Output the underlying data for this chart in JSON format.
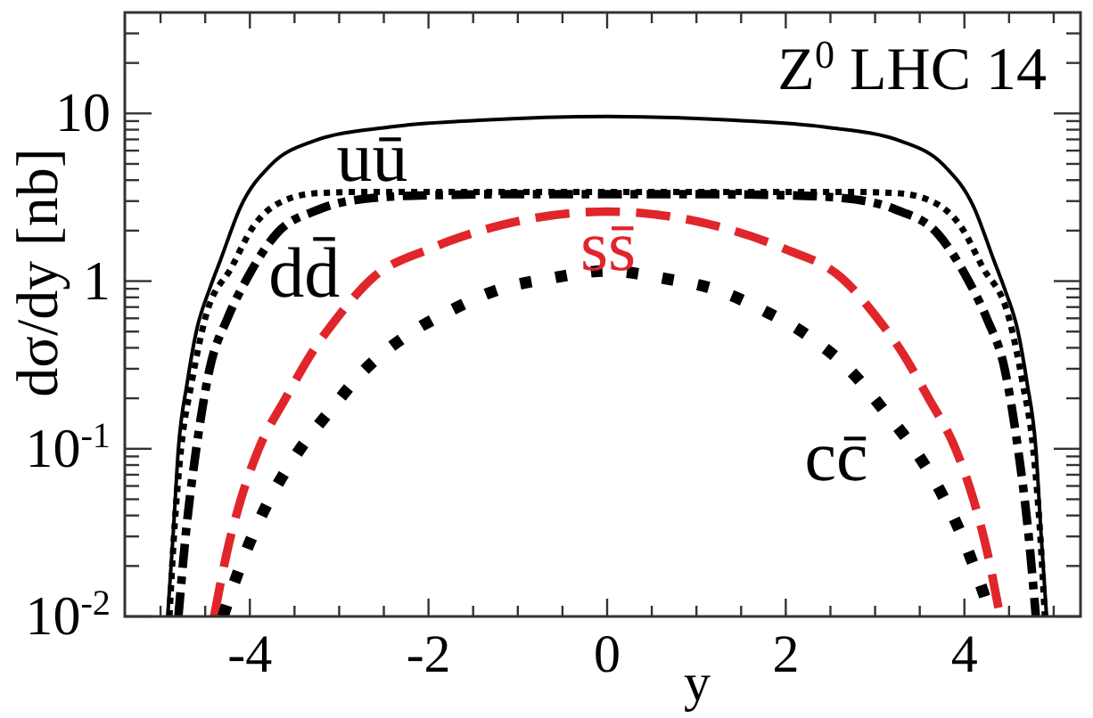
{
  "chart_data": {
    "type": "line",
    "xlabel": "y",
    "ylabel": "dσ/dy [nb]",
    "annotations": [
      "Z$^{0}$ LHC 14"
    ],
    "xlim": [
      -5.4,
      5.3
    ],
    "ylim": [
      0.01,
      40
    ],
    "log": "y",
    "xticks": [
      {
        "value": -5,
        "label": null
      },
      {
        "value": -4.5,
        "label": null
      },
      -4,
      {
        "value": -3.5,
        "label": null
      },
      {
        "value": -3,
        "label": null
      },
      {
        "value": -2.5,
        "label": null
      },
      -2,
      {
        "value": -1.5,
        "label": null
      },
      {
        "value": -1,
        "label": null
      },
      {
        "value": -0.5,
        "label": null
      },
      0,
      {
        "value": 0.5,
        "label": null
      },
      {
        "value": 1,
        "label": null
      },
      {
        "value": 1.5,
        "label": null
      },
      2,
      {
        "value": 2.5,
        "label": null
      },
      {
        "value": 3,
        "label": null
      },
      {
        "value": 3.5,
        "label": null
      },
      4,
      {
        "value": 4.5,
        "label": null
      },
      {
        "value": 5,
        "label": null
      }
    ],
    "yticks": [
      {
        "value": 0.01,
        "label": "10$^{-2}$"
      },
      {
        "value": 0.02,
        "label": null
      },
      {
        "value": 0.03,
        "label": null
      },
      {
        "value": 0.04,
        "label": null
      },
      {
        "value": 0.05,
        "label": null
      },
      {
        "value": 0.06,
        "label": null
      },
      {
        "value": 0.07,
        "label": null
      },
      {
        "value": 0.08,
        "label": null
      },
      {
        "value": 0.09,
        "label": null
      },
      {
        "value": 0.1,
        "label": "10$^{-1}$"
      },
      {
        "value": 0.2,
        "label": null
      },
      {
        "value": 0.3,
        "label": null
      },
      {
        "value": 0.4,
        "label": null
      },
      {
        "value": 0.5,
        "label": null
      },
      {
        "value": 0.6,
        "label": null
      },
      {
        "value": 0.7,
        "label": null
      },
      {
        "value": 0.8,
        "label": null
      },
      {
        "value": 0.9,
        "label": null
      },
      1,
      {
        "value": 2,
        "label": null
      },
      {
        "value": 3,
        "label": null
      },
      {
        "value": 4,
        "label": null
      },
      {
        "value": 5,
        "label": null
      },
      {
        "value": 6,
        "label": null
      },
      {
        "value": 7,
        "label": null
      },
      {
        "value": 8,
        "label": null
      },
      {
        "value": 9,
        "label": null
      },
      10,
      {
        "value": 20,
        "label": null
      },
      {
        "value": 30,
        "label": null
      }
    ],
    "series": [
      {
        "color": "#000000",
        "line_style": "solid",
        "x": [
          -4.92,
          -4.86,
          -4.8,
          -4.7,
          -4.6,
          -4.45,
          -4.33,
          -4.1,
          -3.77,
          -3.3,
          -2.43,
          -1.43,
          0,
          1.43,
          2.43,
          3.3,
          3.77,
          4.1,
          4.33,
          4.45,
          4.6,
          4.7,
          4.8,
          4.86,
          4.92
        ],
        "values": [
          0.01,
          0.03,
          0.1,
          0.25,
          0.5,
          0.9,
          1.33,
          2.8,
          4.9,
          6.8,
          8.3,
          9.1,
          9.6,
          9.1,
          8.3,
          6.8,
          4.9,
          2.8,
          1.33,
          0.9,
          0.5,
          0.25,
          0.1,
          0.03,
          0.01
        ]
      },
      {
        "name": "uū",
        "color": "#000000",
        "line_style": "dotted",
        "x": [
          -4.9,
          -4.85,
          -4.77,
          -4.65,
          -4.5,
          -4.2,
          -3.97,
          -3.63,
          -3.23,
          -2.77,
          -2,
          -1,
          0,
          1,
          2,
          2.77,
          3.23,
          3.63,
          3.97,
          4.2,
          4.5,
          4.65,
          4.77,
          4.85,
          4.9
        ],
        "values": [
          0.01,
          0.03,
          0.1,
          0.25,
          0.6,
          1.22,
          2.08,
          3.0,
          3.35,
          3.4,
          3.4,
          3.4,
          3.4,
          3.4,
          3.4,
          3.4,
          3.35,
          3.0,
          2.08,
          1.22,
          0.6,
          0.25,
          0.1,
          0.03,
          0.01
        ]
      },
      {
        "name": "dd̄",
        "color": "#000000",
        "line_style": "dashdot",
        "x": [
          -4.8,
          -4.72,
          -4.6,
          -4.45,
          -4.25,
          -4.03,
          -3.7,
          -3.23,
          -2.63,
          -2,
          -1,
          0,
          1,
          2,
          2.63,
          3.23,
          3.7,
          4.03,
          4.25,
          4.45,
          4.6,
          4.72,
          4.8
        ],
        "values": [
          0.01,
          0.03,
          0.1,
          0.3,
          0.6,
          1.04,
          1.92,
          2.67,
          3.13,
          3.25,
          3.3,
          3.3,
          3.3,
          3.25,
          3.13,
          2.67,
          1.92,
          1.04,
          0.6,
          0.3,
          0.1,
          0.03,
          0.01
        ]
      },
      {
        "name": "ss̄",
        "color": "#e0252b",
        "line_style": "dashed",
        "x": [
          -4.4,
          -4.25,
          -4.1,
          -3.9,
          -3.6,
          -3.23,
          -3.07,
          -2.63,
          -1.97,
          -1.3,
          -0.37,
          0,
          0.37,
          1.3,
          1.97,
          2.63,
          3.07,
          3.23,
          3.6,
          3.9,
          4.1,
          4.25,
          4.4
        ],
        "values": [
          0.01,
          0.025,
          0.05,
          0.1,
          0.2,
          0.43,
          0.56,
          1.04,
          1.57,
          2.08,
          2.55,
          2.6,
          2.55,
          2.08,
          1.57,
          1.04,
          0.56,
          0.43,
          0.2,
          0.1,
          0.05,
          0.025,
          0.01
        ]
      },
      {
        "name": "cc̄",
        "color": "#000000",
        "line_style": "dotted",
        "x": [
          -4.3,
          -4.23,
          -4.01,
          -3.77,
          -3.47,
          -3.1,
          -2.73,
          -2.23,
          -1.77,
          -1.23,
          -0.63,
          0,
          0.63,
          1.23,
          1.77,
          2.23,
          2.73,
          3.1,
          3.47,
          3.77,
          4.01,
          4.23,
          4.3
        ],
        "values": [
          0.01,
          0.013,
          0.027,
          0.051,
          0.094,
          0.169,
          0.29,
          0.48,
          0.66,
          0.885,
          1.04,
          1.15,
          1.04,
          0.885,
          0.66,
          0.48,
          0.29,
          0.169,
          0.094,
          0.051,
          0.027,
          0.013,
          0.01
        ]
      }
    ]
  }
}
